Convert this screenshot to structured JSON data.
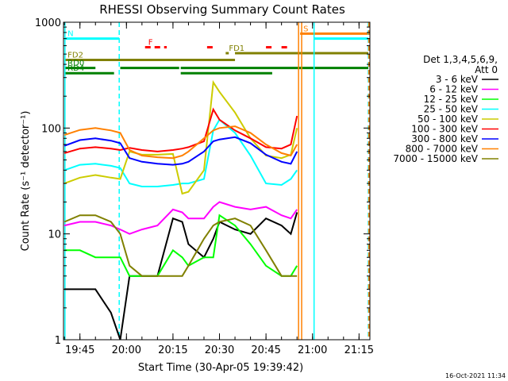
{
  "chart_data": {
    "type": "line",
    "title": "RHESSI Observing Summary Count Rates",
    "xlabel": "Start Time (30-Apr-05 19:39:42)",
    "ylabel": "Count Rate (s⁻¹ detector⁻¹)",
    "y_scale": "log",
    "ylim": [
      1,
      1000
    ],
    "xlim": [
      "19:39:42",
      "21:18:30"
    ],
    "x_ticks": [
      "19:45",
      "20:00",
      "20:15",
      "20:30",
      "20:45",
      "21:00",
      "21:15"
    ],
    "y_ticks": [
      1,
      10,
      100,
      1000
    ],
    "y_tick_labels": [
      "1",
      "10",
      "100",
      "1000"
    ],
    "legend_header": [
      "Det 1,3,4,5,6,9,",
      "Att 0"
    ],
    "legend_position": "right",
    "series": [
      {
        "name": "3 - 6 keV",
        "color": "#000000",
        "points": [
          [
            "19:40",
            3
          ],
          [
            "19:45",
            3
          ],
          [
            "19:50",
            3
          ],
          [
            "19:55",
            1.8
          ],
          [
            "19:58",
            1
          ],
          [
            "20:01",
            4
          ],
          [
            "20:05",
            4
          ],
          [
            "20:10",
            4
          ],
          [
            "20:15",
            14
          ],
          [
            "20:18",
            13
          ],
          [
            "20:20",
            8
          ],
          [
            "20:25",
            6
          ],
          [
            "20:28",
            9
          ],
          [
            "20:30",
            13
          ],
          [
            "20:35",
            11
          ],
          [
            "20:40",
            10
          ],
          [
            "20:45",
            14
          ],
          [
            "20:50",
            12
          ],
          [
            "20:53",
            10
          ],
          [
            "20:55",
            16
          ]
        ]
      },
      {
        "name": "6 - 12 keV",
        "color": "#ff00ff",
        "points": [
          [
            "19:40",
            12
          ],
          [
            "19:45",
            13
          ],
          [
            "19:50",
            13
          ],
          [
            "19:55",
            12
          ],
          [
            "19:58",
            11
          ],
          [
            "20:01",
            10
          ],
          [
            "20:05",
            11
          ],
          [
            "20:10",
            12
          ],
          [
            "20:15",
            17
          ],
          [
            "20:18",
            16
          ],
          [
            "20:20",
            14
          ],
          [
            "20:25",
            14
          ],
          [
            "20:28",
            18
          ],
          [
            "20:30",
            20
          ],
          [
            "20:35",
            18
          ],
          [
            "20:40",
            17
          ],
          [
            "20:45",
            18
          ],
          [
            "20:50",
            15
          ],
          [
            "20:53",
            14
          ],
          [
            "20:55",
            17
          ]
        ]
      },
      {
        "name": "12 - 25 keV",
        "color": "#00ff00",
        "points": [
          [
            "19:40",
            7
          ],
          [
            "19:45",
            7
          ],
          [
            "19:50",
            6
          ],
          [
            "19:55",
            6
          ],
          [
            "19:58",
            6
          ],
          [
            "20:01",
            4
          ],
          [
            "20:05",
            4
          ],
          [
            "20:10",
            4
          ],
          [
            "20:15",
            7
          ],
          [
            "20:18",
            6
          ],
          [
            "20:20",
            5
          ],
          [
            "20:25",
            6
          ],
          [
            "20:28",
            6
          ],
          [
            "20:30",
            15
          ],
          [
            "20:35",
            12
          ],
          [
            "20:40",
            8
          ],
          [
            "20:45",
            5
          ],
          [
            "20:50",
            4
          ],
          [
            "20:53",
            4
          ],
          [
            "20:55",
            5
          ]
        ]
      },
      {
        "name": "25 - 50 keV",
        "color": "#00ffff",
        "points": [
          [
            "19:40",
            40
          ],
          [
            "19:45",
            45
          ],
          [
            "19:50",
            46
          ],
          [
            "19:55",
            44
          ],
          [
            "19:58",
            42
          ],
          [
            "20:01",
            30
          ],
          [
            "20:05",
            28
          ],
          [
            "20:10",
            28
          ],
          [
            "20:15",
            29
          ],
          [
            "20:18",
            30
          ],
          [
            "20:20",
            30
          ],
          [
            "20:25",
            33
          ],
          [
            "20:28",
            95
          ],
          [
            "20:30",
            120
          ],
          [
            "20:35",
            90
          ],
          [
            "20:40",
            55
          ],
          [
            "20:45",
            30
          ],
          [
            "20:50",
            29
          ],
          [
            "20:53",
            33
          ],
          [
            "20:55",
            40
          ]
        ]
      },
      {
        "name": "50 - 100 keV",
        "color": "#cccc00",
        "points": [
          [
            "19:40",
            30
          ],
          [
            "19:45",
            34
          ],
          [
            "19:50",
            36
          ],
          [
            "19:55",
            34
          ],
          [
            "19:58",
            33
          ],
          [
            "20:01",
            60
          ],
          [
            "20:05",
            56
          ],
          [
            "20:10",
            56
          ],
          [
            "20:15",
            57
          ],
          [
            "20:18",
            24
          ],
          [
            "20:20",
            25
          ],
          [
            "20:25",
            40
          ],
          [
            "20:28",
            270
          ],
          [
            "20:30",
            220
          ],
          [
            "20:35",
            140
          ],
          [
            "20:40",
            80
          ],
          [
            "20:45",
            55
          ],
          [
            "20:50",
            52
          ],
          [
            "20:53",
            56
          ],
          [
            "20:55",
            100
          ]
        ]
      },
      {
        "name": "100 - 300 keV",
        "color": "#ff0000",
        "points": [
          [
            "19:40",
            58
          ],
          [
            "19:45",
            64
          ],
          [
            "19:50",
            66
          ],
          [
            "19:55",
            64
          ],
          [
            "19:58",
            62
          ],
          [
            "20:01",
            65
          ],
          [
            "20:05",
            62
          ],
          [
            "20:10",
            60
          ],
          [
            "20:15",
            62
          ],
          [
            "20:18",
            64
          ],
          [
            "20:20",
            66
          ],
          [
            "20:25",
            75
          ],
          [
            "20:28",
            150
          ],
          [
            "20:30",
            120
          ],
          [
            "20:35",
            95
          ],
          [
            "20:40",
            80
          ],
          [
            "20:45",
            66
          ],
          [
            "20:50",
            64
          ],
          [
            "20:53",
            70
          ],
          [
            "20:55",
            130
          ]
        ]
      },
      {
        "name": "300 - 800 keV",
        "color": "#0000ff",
        "points": [
          [
            "19:40",
            68
          ],
          [
            "19:45",
            77
          ],
          [
            "19:50",
            80
          ],
          [
            "19:55",
            76
          ],
          [
            "19:58",
            72
          ],
          [
            "20:01",
            52
          ],
          [
            "20:05",
            48
          ],
          [
            "20:10",
            46
          ],
          [
            "20:15",
            45
          ],
          [
            "20:18",
            46
          ],
          [
            "20:20",
            48
          ],
          [
            "20:25",
            60
          ],
          [
            "20:28",
            75
          ],
          [
            "20:30",
            78
          ],
          [
            "20:35",
            82
          ],
          [
            "20:40",
            72
          ],
          [
            "20:45",
            56
          ],
          [
            "20:50",
            48
          ],
          [
            "20:53",
            46
          ],
          [
            "20:55",
            60
          ]
        ]
      },
      {
        "name": "800 - 7000 keV",
        "color": "#ff8000",
        "points": [
          [
            "19:40",
            86
          ],
          [
            "19:45",
            96
          ],
          [
            "19:50",
            100
          ],
          [
            "19:55",
            95
          ],
          [
            "19:58",
            90
          ],
          [
            "20:01",
            62
          ],
          [
            "20:05",
            55
          ],
          [
            "20:10",
            53
          ],
          [
            "20:15",
            52
          ],
          [
            "20:18",
            55
          ],
          [
            "20:20",
            60
          ],
          [
            "20:25",
            80
          ],
          [
            "20:28",
            95
          ],
          [
            "20:30",
            100
          ],
          [
            "20:35",
            104
          ],
          [
            "20:40",
            90
          ],
          [
            "20:45",
            70
          ],
          [
            "20:50",
            58
          ],
          [
            "20:53",
            55
          ],
          [
            "20:55",
            70
          ]
        ]
      },
      {
        "name": "7000 - 15000 keV",
        "color": "#808000",
        "points": [
          [
            "19:40",
            13
          ],
          [
            "19:45",
            15
          ],
          [
            "19:50",
            15
          ],
          [
            "19:55",
            13
          ],
          [
            "19:58",
            10
          ],
          [
            "20:01",
            5
          ],
          [
            "20:05",
            4
          ],
          [
            "20:10",
            4
          ],
          [
            "20:15",
            4
          ],
          [
            "20:18",
            4
          ],
          [
            "20:20",
            5
          ],
          [
            "20:25",
            9
          ],
          [
            "20:28",
            12
          ],
          [
            "20:30",
            13
          ],
          [
            "20:35",
            14
          ],
          [
            "20:40",
            12
          ],
          [
            "20:45",
            7
          ],
          [
            "20:50",
            4
          ],
          [
            "20:53",
            4
          ],
          [
            "20:55",
            4
          ]
        ]
      }
    ],
    "flag_bars": [
      {
        "label": "N",
        "color": "#00ffff",
        "level": 700,
        "dashed": false,
        "segments": [
          [
            "19:40:00",
            "19:57:40"
          ],
          [
            "21:00:30",
            "21:18:00"
          ]
        ]
      },
      {
        "label": "S",
        "color": "#ff8000",
        "level": 780,
        "dashed": false,
        "segments": [
          [
            "20:56:00",
            "21:18:00"
          ]
        ]
      },
      {
        "label": "F",
        "color": "#ff0000",
        "level": 580,
        "dashed": true,
        "segments": [
          [
            "20:06:00",
            "20:13:00"
          ],
          [
            "20:26:00",
            "20:28:00"
          ],
          [
            "20:45:00",
            "20:47:00"
          ],
          [
            "20:50:00",
            "20:52:00"
          ]
        ]
      },
      {
        "label": "FD1",
        "color": "#808000",
        "level": 510,
        "dashed": false,
        "segments": [
          [
            "20:32:00",
            "20:33:00"
          ],
          [
            "20:35:00",
            "21:18:00"
          ]
        ]
      },
      {
        "label": "FD2",
        "color": "#808000",
        "level": 440,
        "dashed": false,
        "segments": [
          [
            "19:40:00",
            "20:35:00"
          ]
        ]
      },
      {
        "label": "RD0",
        "color": "#008000",
        "level": 370,
        "dashed": false,
        "segments": [
          [
            "19:40:00",
            "19:50:00"
          ],
          [
            "19:58:00",
            "20:17:00"
          ],
          [
            "20:17:30",
            "21:18:00"
          ]
        ]
      },
      {
        "label": "RD4",
        "color": "#008000",
        "level": 330,
        "dashed": false,
        "segments": [
          [
            "19:40:00",
            "19:56:00"
          ],
          [
            "20:17:30",
            "20:47:00"
          ]
        ]
      }
    ],
    "vertical_markers": [
      {
        "time": "19:40:10",
        "color": "#00ffff",
        "dashed": false
      },
      {
        "time": "19:57:40",
        "color": "#00ffff",
        "dashed": true
      },
      {
        "time": "20:55:30",
        "color": "#ff8000",
        "dashed": false
      },
      {
        "time": "20:56:30",
        "color": "#ff8000",
        "dashed": false
      },
      {
        "time": "21:00:30",
        "color": "#00ffff",
        "dashed": false
      },
      {
        "time": "21:18:00",
        "color": "#00ffff",
        "dashed": true
      },
      {
        "time": "21:18:10",
        "color": "#ff8000",
        "dashed": true
      }
    ]
  },
  "timestamp": "16-Oct-2021 11:34"
}
